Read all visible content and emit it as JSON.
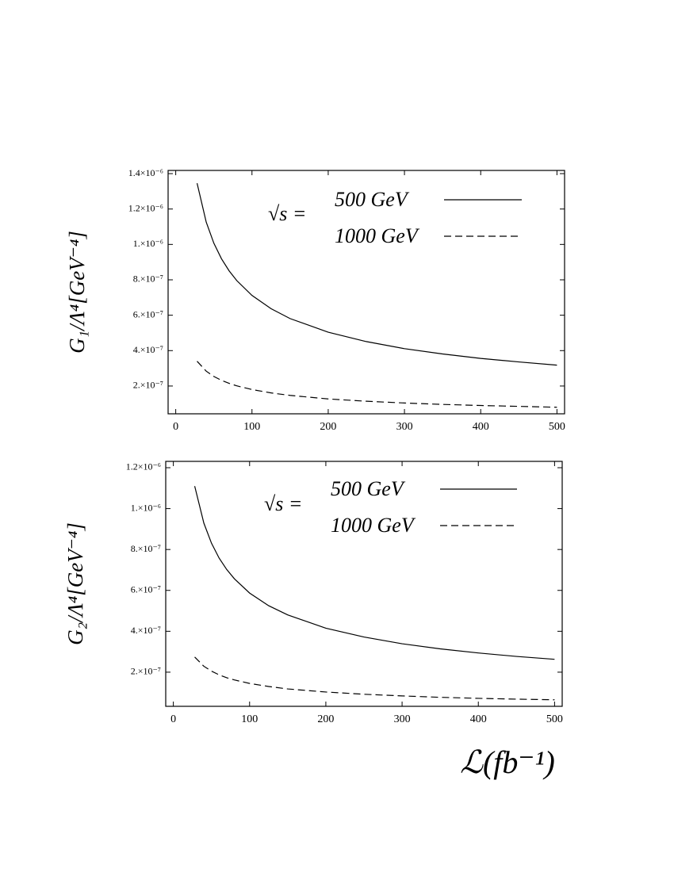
{
  "chart_data": [
    {
      "type": "line",
      "ylabel": "G₁/Λ⁴[GeV⁻⁴]",
      "legend_prefix": "√s =",
      "x": [
        28,
        40,
        50,
        60,
        70,
        80,
        100,
        125,
        150,
        200,
        250,
        300,
        350,
        400,
        450,
        500
      ],
      "series": [
        {
          "name": "500 GeV",
          "color": "#000000",
          "linestyle": "solid",
          "values": [
            1.346e-06,
            1.126e-06,
            1.007e-06,
            9.19e-07,
            8.51e-07,
            7.96e-07,
            7.12e-07,
            6.37e-07,
            5.81e-07,
            5.04e-07,
            4.51e-07,
            4.11e-07,
            3.81e-07,
            3.56e-07,
            3.36e-07,
            3.18e-07
          ]
        },
        {
          "name": "1000 GeV",
          "color": "#000000",
          "linestyle": "dashed",
          "values": [
            3.4e-07,
            2.84e-07,
            2.54e-07,
            2.32e-07,
            2.15e-07,
            2.01e-07,
            1.8e-07,
            1.61e-07,
            1.47e-07,
            1.27e-07,
            1.14e-07,
            1.04e-07,
            9.6e-08,
            9e-08,
            8.5e-08,
            8e-08
          ]
        }
      ],
      "xlim": [
        -10,
        510
      ],
      "xticks": [
        0,
        100,
        200,
        300,
        400,
        500
      ],
      "ylim": [
        4.3e-08,
        1.418e-06
      ],
      "yticks": [
        {
          "value": 2e-07,
          "label": "2.×10⁻⁷"
        },
        {
          "value": 4e-07,
          "label": "4.×10⁻⁷"
        },
        {
          "value": 6e-07,
          "label": "6.×10⁻⁷"
        },
        {
          "value": 8e-07,
          "label": "8.×10⁻⁷"
        },
        {
          "value": 1e-06,
          "label": "1.×10⁻⁶"
        },
        {
          "value": 1.2e-06,
          "label": "1.2×10⁻⁶"
        },
        {
          "value": 1.4e-06,
          "label": "1.4×10⁻⁶"
        }
      ],
      "grid": false
    },
    {
      "type": "line",
      "ylabel": "G₂/Λ⁴[GeV⁻⁴]",
      "xlabel": "ℒ(fb⁻¹)",
      "legend_prefix": "√s =",
      "x": [
        28,
        40,
        50,
        60,
        70,
        80,
        100,
        125,
        150,
        200,
        250,
        300,
        350,
        400,
        450,
        500
      ],
      "series": [
        {
          "name": "500 GeV",
          "color": "#000000",
          "linestyle": "solid",
          "values": [
            1.11e-06,
            9.29e-07,
            8.31e-07,
            7.58e-07,
            7.02e-07,
            6.57e-07,
            5.87e-07,
            5.25e-07,
            4.8e-07,
            4.15e-07,
            3.72e-07,
            3.39e-07,
            3.14e-07,
            2.94e-07,
            2.77e-07,
            2.63e-07
          ]
        },
        {
          "name": "1000 GeV",
          "color": "#000000",
          "linestyle": "dashed",
          "values": [
            2.74e-07,
            2.29e-07,
            2.05e-07,
            1.87e-07,
            1.73e-07,
            1.62e-07,
            1.45e-07,
            1.3e-07,
            1.18e-07,
            1.03e-07,
            9.2e-08,
            8.4e-08,
            7.7e-08,
            7.2e-08,
            6.8e-08,
            6.5e-08
          ]
        }
      ],
      "xlim": [
        -10,
        510
      ],
      "xticks": [
        0,
        100,
        200,
        300,
        400,
        500
      ],
      "ylim": [
        3.3e-08,
        1.231e-06
      ],
      "yticks": [
        {
          "value": 2e-07,
          "label": "2.×10⁻⁷"
        },
        {
          "value": 4e-07,
          "label": "4.×10⁻⁷"
        },
        {
          "value": 6e-07,
          "label": "6.×10⁻⁷"
        },
        {
          "value": 8e-07,
          "label": "8.×10⁻⁷"
        },
        {
          "value": 1e-06,
          "label": "1.×10⁻⁶"
        },
        {
          "value": 1.2e-06,
          "label": "1.2×10⁻⁶"
        }
      ],
      "grid": false
    }
  ]
}
